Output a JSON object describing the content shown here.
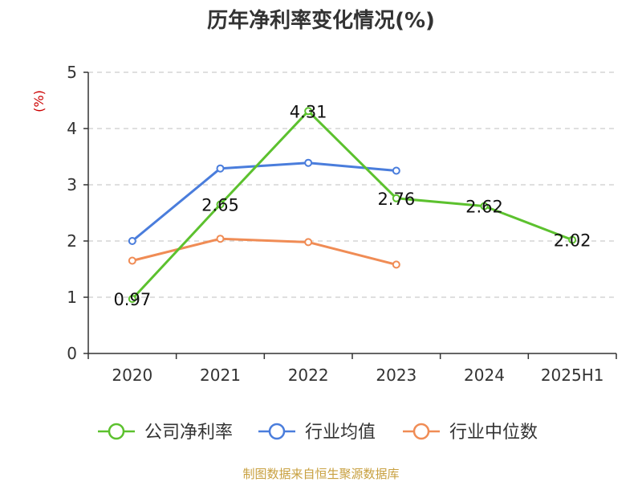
{
  "chart_data": {
    "type": "line",
    "title": "历年净利率变化情况(%)",
    "y_unit_label": "(%)",
    "categories": [
      "2020",
      "2021",
      "2022",
      "2023",
      "2024",
      "2025H1"
    ],
    "ylim": [
      0,
      5
    ],
    "y_ticks": [
      "0",
      "1",
      "2",
      "3",
      "4",
      "5"
    ],
    "grid": true,
    "legend_position": "bottom",
    "series": [
      {
        "name": "公司净利率",
        "color": "#5cc12e",
        "values": [
          0.97,
          2.65,
          4.31,
          2.76,
          2.62,
          2.02
        ],
        "data_labels": [
          "0.97",
          "2.65",
          "4.31",
          "2.76",
          "2.62",
          "2.02"
        ]
      },
      {
        "name": "行业均值",
        "color": "#4a7ddc",
        "values": [
          2.0,
          3.29,
          3.39,
          3.25,
          null,
          null
        ]
      },
      {
        "name": "行业中位数",
        "color": "#f08c55",
        "values": [
          1.65,
          2.04,
          1.98,
          1.58,
          null,
          null
        ]
      }
    ]
  },
  "source_text": "制图数据来自恒生聚源数据库"
}
